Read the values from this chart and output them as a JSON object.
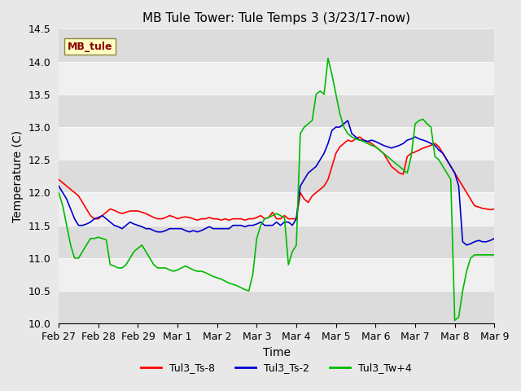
{
  "title": "MB Tule Tower: Tule Temps 3 (3/23/17-now)",
  "xlabel": "Time",
  "ylabel": "Temperature (C)",
  "ylim": [
    10.0,
    14.5
  ],
  "yticks": [
    10.0,
    10.5,
    11.0,
    11.5,
    12.0,
    12.5,
    13.0,
    13.5,
    14.0,
    14.5
  ],
  "xtick_labels": [
    "Feb 27",
    "Feb 28",
    "Feb 29",
    "Mar 1",
    "Mar 2",
    "Mar 3",
    "Mar 4",
    "Mar 5",
    "Mar 6",
    "Mar 7",
    "Mar 8",
    "Mar 9"
  ],
  "xlim": [
    0,
    11
  ],
  "annotation_text": "MB_tule",
  "annotation_color": "#8B0000",
  "annotation_bg": "#FFFFC0",
  "legend_entries": [
    "Tul3_Ts-8",
    "Tul3_Ts-2",
    "Tul3_Tw+4"
  ],
  "line_colors": [
    "#FF0000",
    "#0000CC",
    "#00BB00"
  ],
  "bg_color": "#E8E8E8",
  "plot_bg": "#F0F0F0",
  "stripe_colors": [
    "#DCDCDC",
    "#F0F0F0"
  ],
  "red_x": [
    0.0,
    0.1,
    0.2,
    0.3,
    0.4,
    0.5,
    0.6,
    0.7,
    0.8,
    0.9,
    1.0,
    1.1,
    1.2,
    1.3,
    1.4,
    1.5,
    1.6,
    1.7,
    1.8,
    1.9,
    2.0,
    2.1,
    2.2,
    2.3,
    2.4,
    2.5,
    2.6,
    2.7,
    2.8,
    2.9,
    3.0,
    3.1,
    3.2,
    3.3,
    3.4,
    3.5,
    3.6,
    3.7,
    3.8,
    3.9,
    4.0,
    4.1,
    4.2,
    4.3,
    4.4,
    4.5,
    4.6,
    4.7,
    4.8,
    4.9,
    5.0,
    5.1,
    5.2,
    5.3,
    5.4,
    5.5,
    5.6,
    5.7,
    5.8,
    5.9,
    6.0,
    6.1,
    6.2,
    6.3,
    6.4,
    6.5,
    6.6,
    6.7,
    6.8,
    6.9,
    7.0,
    7.1,
    7.2,
    7.3,
    7.4,
    7.5,
    7.6,
    7.7,
    7.8,
    7.9,
    8.0,
    8.1,
    8.2,
    8.3,
    8.4,
    8.5,
    8.6,
    8.7,
    8.8,
    8.9,
    9.0,
    9.1,
    9.2,
    9.3,
    9.4,
    9.5,
    9.6,
    9.7,
    9.8,
    9.9,
    10.0,
    10.1,
    10.2,
    10.3,
    10.4,
    10.5,
    10.6,
    10.7,
    10.8,
    10.9,
    11.0
  ],
  "red_y": [
    12.2,
    12.15,
    12.1,
    12.05,
    12.0,
    11.95,
    11.85,
    11.75,
    11.65,
    11.6,
    11.6,
    11.65,
    11.7,
    11.75,
    11.73,
    11.7,
    11.68,
    11.7,
    11.72,
    11.72,
    11.72,
    11.7,
    11.68,
    11.65,
    11.62,
    11.6,
    11.6,
    11.62,
    11.65,
    11.63,
    11.6,
    11.62,
    11.63,
    11.62,
    11.6,
    11.58,
    11.6,
    11.6,
    11.62,
    11.6,
    11.6,
    11.58,
    11.6,
    11.58,
    11.6,
    11.6,
    11.6,
    11.58,
    11.6,
    11.6,
    11.62,
    11.65,
    11.6,
    11.62,
    11.7,
    11.6,
    11.6,
    11.65,
    11.6,
    11.6,
    11.6,
    12.0,
    11.9,
    11.85,
    11.95,
    12.0,
    12.05,
    12.1,
    12.2,
    12.4,
    12.6,
    12.7,
    12.75,
    12.8,
    12.78,
    12.82,
    12.85,
    12.8,
    12.78,
    12.75,
    12.7,
    12.65,
    12.6,
    12.5,
    12.4,
    12.35,
    12.3,
    12.28,
    12.55,
    12.6,
    12.62,
    12.65,
    12.68,
    12.7,
    12.72,
    12.75,
    12.7,
    12.6,
    12.5,
    12.4,
    12.3,
    12.2,
    12.1,
    12.0,
    11.9,
    11.8,
    11.78,
    11.76,
    11.75,
    11.74,
    11.75
  ],
  "blue_x": [
    0.0,
    0.1,
    0.2,
    0.3,
    0.4,
    0.5,
    0.6,
    0.7,
    0.8,
    0.9,
    1.0,
    1.1,
    1.2,
    1.3,
    1.4,
    1.5,
    1.6,
    1.7,
    1.8,
    1.9,
    2.0,
    2.1,
    2.2,
    2.3,
    2.4,
    2.5,
    2.6,
    2.7,
    2.8,
    2.9,
    3.0,
    3.1,
    3.2,
    3.3,
    3.4,
    3.5,
    3.6,
    3.7,
    3.8,
    3.9,
    4.0,
    4.1,
    4.2,
    4.3,
    4.4,
    4.5,
    4.6,
    4.7,
    4.8,
    4.9,
    5.0,
    5.1,
    5.2,
    5.3,
    5.4,
    5.5,
    5.6,
    5.7,
    5.8,
    5.9,
    6.0,
    6.1,
    6.2,
    6.3,
    6.4,
    6.5,
    6.6,
    6.7,
    6.8,
    6.9,
    7.0,
    7.1,
    7.2,
    7.3,
    7.4,
    7.5,
    7.6,
    7.7,
    7.8,
    7.9,
    8.0,
    8.1,
    8.2,
    8.3,
    8.4,
    8.5,
    8.6,
    8.7,
    8.8,
    8.9,
    9.0,
    9.1,
    9.2,
    9.3,
    9.4,
    9.5,
    9.6,
    9.7,
    9.8,
    9.9,
    10.0,
    10.1,
    10.2,
    10.3,
    10.4,
    10.5,
    10.6,
    10.7,
    10.8,
    10.9,
    11.0
  ],
  "blue_y": [
    12.1,
    12.0,
    11.9,
    11.75,
    11.6,
    11.5,
    11.5,
    11.52,
    11.55,
    11.6,
    11.62,
    11.65,
    11.6,
    11.55,
    11.5,
    11.48,
    11.45,
    11.5,
    11.55,
    11.52,
    11.5,
    11.48,
    11.45,
    11.45,
    11.42,
    11.4,
    11.4,
    11.42,
    11.45,
    11.45,
    11.45,
    11.45,
    11.42,
    11.4,
    11.42,
    11.4,
    11.42,
    11.45,
    11.48,
    11.45,
    11.45,
    11.45,
    11.45,
    11.45,
    11.5,
    11.5,
    11.5,
    11.48,
    11.5,
    11.5,
    11.52,
    11.55,
    11.5,
    11.5,
    11.5,
    11.55,
    11.5,
    11.55,
    11.55,
    11.5,
    11.6,
    12.1,
    12.2,
    12.3,
    12.35,
    12.4,
    12.5,
    12.6,
    12.75,
    12.95,
    13.0,
    13.0,
    13.05,
    13.1,
    12.9,
    12.85,
    12.8,
    12.8,
    12.78,
    12.8,
    12.78,
    12.75,
    12.72,
    12.7,
    12.68,
    12.7,
    12.72,
    12.75,
    12.8,
    12.82,
    12.85,
    12.82,
    12.8,
    12.78,
    12.75,
    12.72,
    12.65,
    12.6,
    12.5,
    12.4,
    12.3,
    12.1,
    11.25,
    11.2,
    11.22,
    11.25,
    11.27,
    11.25,
    11.25,
    11.27,
    11.3
  ],
  "green_x": [
    0.0,
    0.1,
    0.2,
    0.3,
    0.4,
    0.5,
    0.6,
    0.7,
    0.8,
    0.9,
    1.0,
    1.1,
    1.2,
    1.3,
    1.4,
    1.5,
    1.6,
    1.7,
    1.8,
    1.9,
    2.0,
    2.1,
    2.2,
    2.3,
    2.4,
    2.5,
    2.6,
    2.7,
    2.8,
    2.9,
    3.0,
    3.1,
    3.2,
    3.3,
    3.4,
    3.5,
    3.6,
    3.7,
    3.8,
    3.9,
    4.0,
    4.1,
    4.2,
    4.3,
    4.4,
    4.5,
    4.6,
    4.7,
    4.8,
    4.9,
    5.0,
    5.1,
    5.2,
    5.3,
    5.4,
    5.5,
    5.6,
    5.7,
    5.8,
    5.9,
    6.0,
    6.1,
    6.2,
    6.3,
    6.4,
    6.5,
    6.6,
    6.7,
    6.8,
    6.9,
    7.0,
    7.1,
    7.2,
    7.3,
    7.4,
    7.5,
    7.6,
    7.7,
    7.8,
    7.9,
    8.0,
    8.1,
    8.2,
    8.3,
    8.4,
    8.5,
    8.6,
    8.7,
    8.8,
    8.9,
    9.0,
    9.1,
    9.2,
    9.3,
    9.4,
    9.5,
    9.6,
    9.7,
    9.8,
    9.9,
    10.0,
    10.1,
    10.2,
    10.3,
    10.4,
    10.5,
    10.6,
    10.7,
    10.8,
    10.9,
    11.0
  ],
  "green_y": [
    12.0,
    11.8,
    11.5,
    11.2,
    11.0,
    11.0,
    11.1,
    11.2,
    11.3,
    11.3,
    11.32,
    11.3,
    11.28,
    10.9,
    10.88,
    10.85,
    10.85,
    10.9,
    11.0,
    11.1,
    11.15,
    11.2,
    11.1,
    11.0,
    10.9,
    10.85,
    10.85,
    10.85,
    10.82,
    10.8,
    10.82,
    10.85,
    10.88,
    10.85,
    10.82,
    10.8,
    10.8,
    10.78,
    10.75,
    10.72,
    10.7,
    10.68,
    10.65,
    10.62,
    10.6,
    10.58,
    10.55,
    10.52,
    10.5,
    10.75,
    11.3,
    11.5,
    11.6,
    11.62,
    11.65,
    11.68,
    11.65,
    11.62,
    10.9,
    11.1,
    11.2,
    12.9,
    13.0,
    13.05,
    13.1,
    13.5,
    13.55,
    13.5,
    14.05,
    13.8,
    13.5,
    13.2,
    13.0,
    12.9,
    12.85,
    12.82,
    12.8,
    12.78,
    12.75,
    12.72,
    12.7,
    12.65,
    12.6,
    12.55,
    12.5,
    12.45,
    12.4,
    12.35,
    12.3,
    12.55,
    13.05,
    13.1,
    13.12,
    13.05,
    13.0,
    12.55,
    12.5,
    12.4,
    12.3,
    12.2,
    10.05,
    10.1,
    10.5,
    10.8,
    11.0,
    11.05,
    11.05,
    11.05,
    11.05,
    11.05,
    11.05
  ]
}
